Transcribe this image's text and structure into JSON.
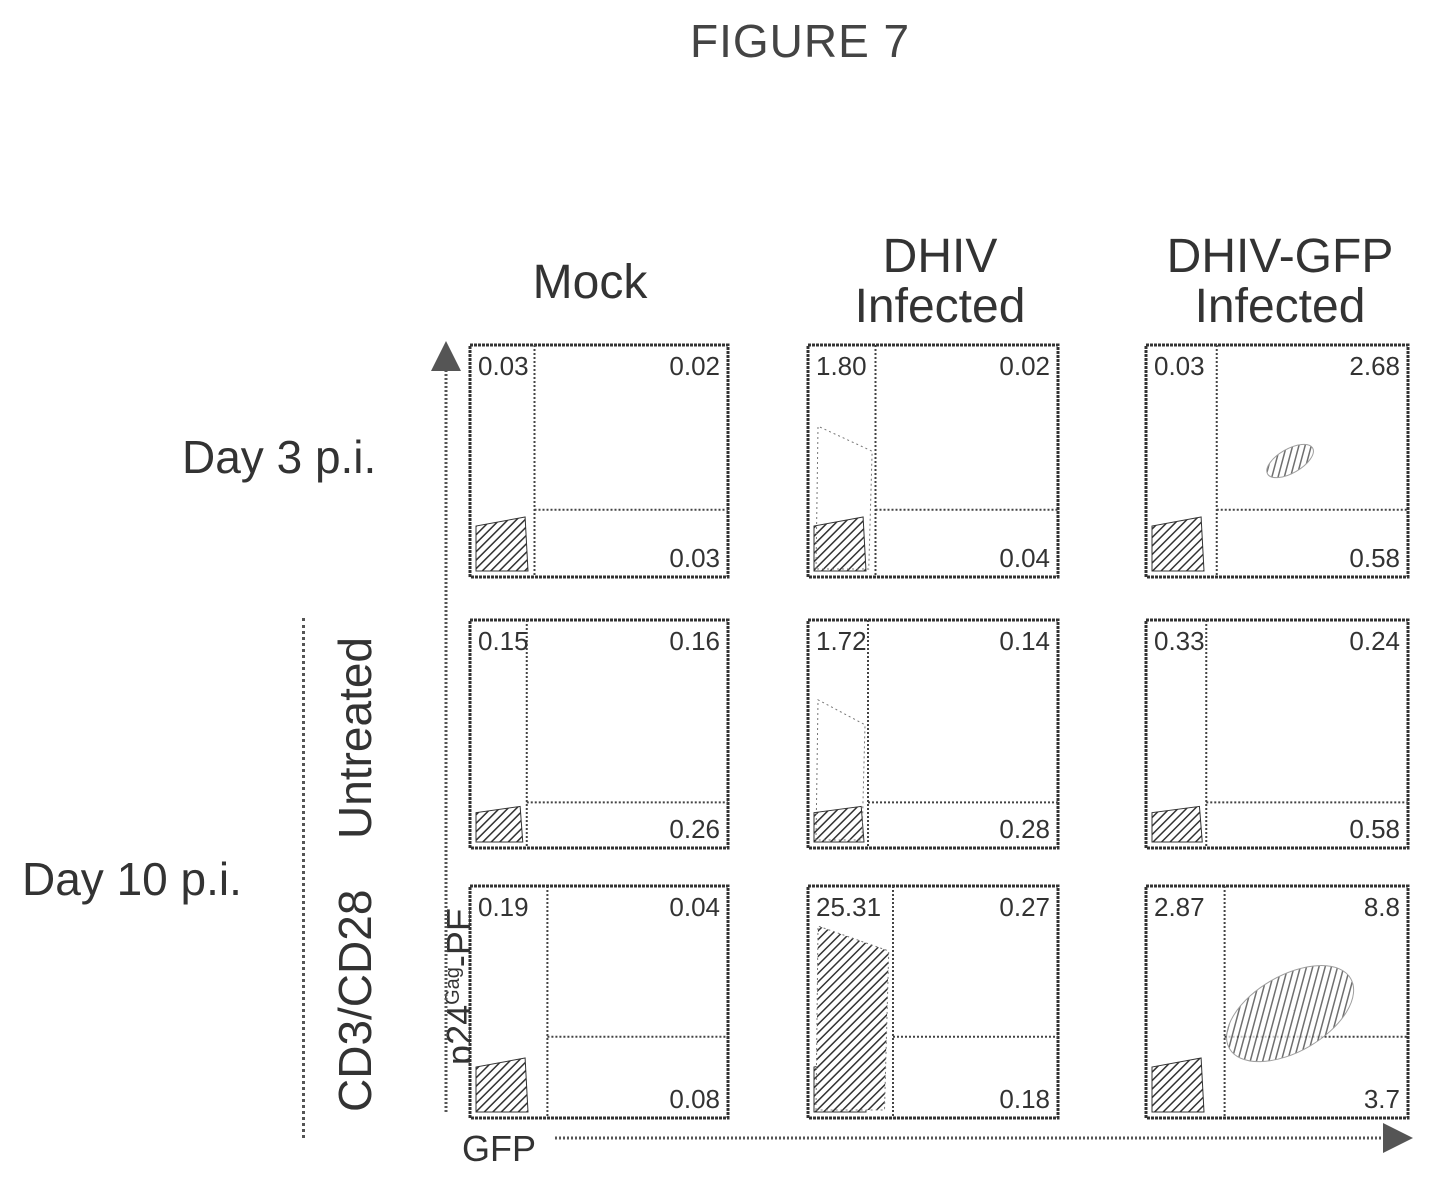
{
  "figure_title": "FIGURE 7",
  "columns": [
    {
      "line1": "Mock",
      "line2": ""
    },
    {
      "line1": "DHIV",
      "line2": "Infected"
    },
    {
      "line1": "DHIV-GFP",
      "line2": "Infected"
    }
  ],
  "rows": {
    "day3": "Day 3 p.i.",
    "day10": "Day 10 p.i.",
    "untreated": "Untreated",
    "cd3cd28": "CD3/CD28"
  },
  "axes": {
    "y_label": "p24",
    "y_sub": "Gag",
    "y_suffix": "-PE",
    "x_label": "GFP"
  },
  "chart_data": [
    {
      "type": "scatter",
      "row": "Day 3 p.i.",
      "column": "Mock",
      "xlabel": "GFP",
      "ylabel": "p24 Gag-PE",
      "quadrants": {
        "upper_left": "0.03",
        "upper_right": "0.02",
        "lower_right": "0.03"
      }
    },
    {
      "type": "scatter",
      "row": "Day 3 p.i.",
      "column": "DHIV Infected",
      "xlabel": "GFP",
      "ylabel": "p24 Gag-PE",
      "quadrants": {
        "upper_left": "1.80",
        "upper_right": "0.02",
        "lower_right": "0.04"
      }
    },
    {
      "type": "scatter",
      "row": "Day 3 p.i.",
      "column": "DHIV-GFP Infected",
      "xlabel": "GFP",
      "ylabel": "p24 Gag-PE",
      "quadrants": {
        "upper_left": "0.03",
        "upper_right": "2.68",
        "lower_right": "0.58"
      }
    },
    {
      "type": "scatter",
      "row": "Day 10 p.i. Untreated",
      "column": "Mock",
      "xlabel": "GFP",
      "ylabel": "p24 Gag-PE",
      "quadrants": {
        "upper_left": "0.15",
        "upper_right": "0.16",
        "lower_right": "0.26"
      }
    },
    {
      "type": "scatter",
      "row": "Day 10 p.i. Untreated",
      "column": "DHIV Infected",
      "xlabel": "GFP",
      "ylabel": "p24 Gag-PE",
      "quadrants": {
        "upper_left": "1.72",
        "upper_right": "0.14",
        "lower_right": "0.28"
      }
    },
    {
      "type": "scatter",
      "row": "Day 10 p.i. Untreated",
      "column": "DHIV-GFP Infected",
      "xlabel": "GFP",
      "ylabel": "p24 Gag-PE",
      "quadrants": {
        "upper_left": "0.33",
        "upper_right": "0.24",
        "lower_right": "0.58"
      }
    },
    {
      "type": "scatter",
      "row": "Day 10 p.i. CD3/CD28",
      "column": "Mock",
      "xlabel": "GFP",
      "ylabel": "p24 Gag-PE",
      "quadrants": {
        "upper_left": "0.19",
        "upper_right": "0.04",
        "lower_right": "0.08"
      }
    },
    {
      "type": "scatter",
      "row": "Day 10 p.i. CD3/CD28",
      "column": "DHIV Infected",
      "xlabel": "GFP",
      "ylabel": "p24 Gag-PE",
      "quadrants": {
        "upper_left": "25.31",
        "upper_right": "0.27",
        "lower_right": "0.18"
      }
    },
    {
      "type": "scatter",
      "row": "Day 10 p.i. CD3/CD28",
      "column": "DHIV-GFP Infected",
      "xlabel": "GFP",
      "ylabel": "p24 Gag-PE",
      "quadrants": {
        "upper_left": "2.87",
        "upper_right": "8.8",
        "lower_right": "3.7"
      }
    }
  ]
}
